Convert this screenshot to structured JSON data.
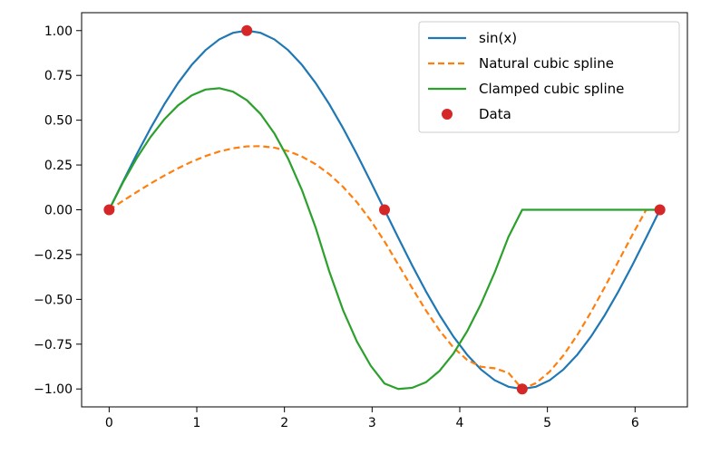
{
  "chart_data": {
    "type": "line",
    "title": "",
    "xlabel": "",
    "ylabel": "",
    "xlim": [
      -0.314,
      6.597
    ],
    "ylim": [
      -1.1,
      1.1
    ],
    "xticks": [
      0,
      1,
      2,
      3,
      4,
      5,
      6
    ],
    "xtick_labels": [
      "0",
      "1",
      "2",
      "3",
      "4",
      "5",
      "6"
    ],
    "yticks": [
      1.0,
      0.75,
      0.5,
      0.25,
      0.0,
      -0.25,
      -0.5,
      -0.75,
      -1.0
    ],
    "ytick_labels": [
      "1.00",
      "0.75",
      "0.50",
      "0.25",
      "0.00",
      "−0.25",
      "−0.50",
      "−0.75",
      "−1.00"
    ],
    "grid": false,
    "legend_position": "upper right",
    "series": [
      {
        "name": "sin(x)",
        "style": "solid",
        "color": "#1f77b4",
        "x": [
          0,
          0.1571,
          0.3142,
          0.4712,
          0.6283,
          0.7854,
          0.9425,
          1.0996,
          1.2566,
          1.4137,
          1.5708,
          1.7279,
          1.885,
          2.042,
          2.1991,
          2.3562,
          2.5133,
          2.6704,
          2.8274,
          2.9845,
          3.1416,
          3.2987,
          3.4558,
          3.6128,
          3.7699,
          3.927,
          4.0841,
          4.2412,
          4.3982,
          4.5553,
          4.7124,
          4.8695,
          5.0265,
          5.1836,
          5.3407,
          5.4978,
          5.6549,
          5.8119,
          5.969,
          6.1261,
          6.2832
        ],
        "y": [
          0,
          0.1564,
          0.309,
          0.454,
          0.5878,
          0.7071,
          0.809,
          0.891,
          0.9511,
          0.9877,
          1.0,
          0.9877,
          0.9511,
          0.891,
          0.809,
          0.7071,
          0.5878,
          0.454,
          0.309,
          0.1564,
          0,
          -0.1564,
          -0.309,
          -0.454,
          -0.5878,
          -0.7071,
          -0.809,
          -0.891,
          -0.9511,
          -0.9877,
          -1.0,
          -0.9877,
          -0.9511,
          -0.891,
          -0.809,
          -0.7071,
          -0.5878,
          -0.454,
          -0.309,
          -0.1564,
          0
        ]
      },
      {
        "name": "Natural cubic spline",
        "style": "dashed",
        "color": "#ff7f0e",
        "x": [
          0,
          0.1571,
          0.3142,
          0.4712,
          0.6283,
          0.7854,
          0.9425,
          1.0996,
          1.2566,
          1.4137,
          1.5708,
          1.7279,
          1.885,
          2.042,
          2.1991,
          2.3562,
          2.5133,
          2.6704,
          2.8274,
          2.9845,
          3.1416,
          3.2987,
          3.4558,
          3.6128,
          3.7699,
          3.927,
          4.0841,
          4.2412,
          4.3982,
          4.5553,
          4.7124,
          4.8695,
          5.0265,
          5.1836,
          5.3407,
          5.4978,
          5.6549,
          5.8119,
          5.969,
          6.1261,
          6.2832
        ],
        "y": [
          0,
          0.0498,
          0.0987,
          0.1459,
          0.1905,
          0.2316,
          0.2684,
          0.2998,
          0.3251,
          0.3433,
          0.3536,
          0.355,
          0.3467,
          0.3277,
          0.2972,
          0.2542,
          0.1979,
          0.1273,
          0.0416,
          -0.0598,
          -0.1768,
          -0.3056,
          -0.4356,
          -0.5606,
          -0.6737,
          -0.7684,
          -0.8381,
          -0.876,
          -0.8845,
          -0.91,
          -1.0,
          -0.9675,
          -0.903,
          -0.8119,
          -0.6993,
          -0.5706,
          -0.431,
          -0.2858,
          -0.1401,
          -0.0004,
          0
        ]
      },
      {
        "name": "Clamped cubic spline",
        "style": "solid",
        "color": "#2ca02c",
        "x": [
          0,
          0.1571,
          0.3142,
          0.4712,
          0.6283,
          0.7854,
          0.9425,
          1.0996,
          1.2566,
          1.4137,
          1.5708,
          1.7279,
          1.885,
          2.042,
          2.1991,
          2.3562,
          2.5133,
          2.6704,
          2.8274,
          2.9845,
          3.1416,
          3.2987,
          3.4558,
          3.6128,
          3.7699,
          3.927,
          4.0841,
          4.2412,
          4.3982,
          4.5553,
          4.7124,
          4.8695,
          5.0265,
          5.1836,
          5.3407,
          5.4978,
          5.6549,
          5.8119,
          5.969,
          6.1261,
          6.2832
        ],
        "y": [
          0,
          0.1518,
          0.2875,
          0.4055,
          0.5044,
          0.5826,
          0.6387,
          0.6711,
          0.6784,
          0.6591,
          0.6116,
          0.5345,
          0.4263,
          0.2855,
          0.1106,
          -0.0999,
          -0.3466,
          -0.5625,
          -0.736,
          -0.8705,
          -0.9696,
          -1.0,
          -0.9936,
          -0.963,
          -0.8988,
          -0.8031,
          -0.6782,
          -0.5265,
          -0.3502,
          -0.1516,
          0.0,
          0.0,
          0.0,
          0.0,
          0.0,
          0.0,
          0.0,
          0.0,
          0.0,
          0.0,
          0.0
        ]
      },
      {
        "name": "Data",
        "style": "markers",
        "color": "#d62728",
        "x": [
          0,
          1.5708,
          3.1416,
          4.7124,
          6.2832
        ],
        "y": [
          0,
          1.0,
          0,
          -1.0,
          0
        ]
      }
    ]
  }
}
